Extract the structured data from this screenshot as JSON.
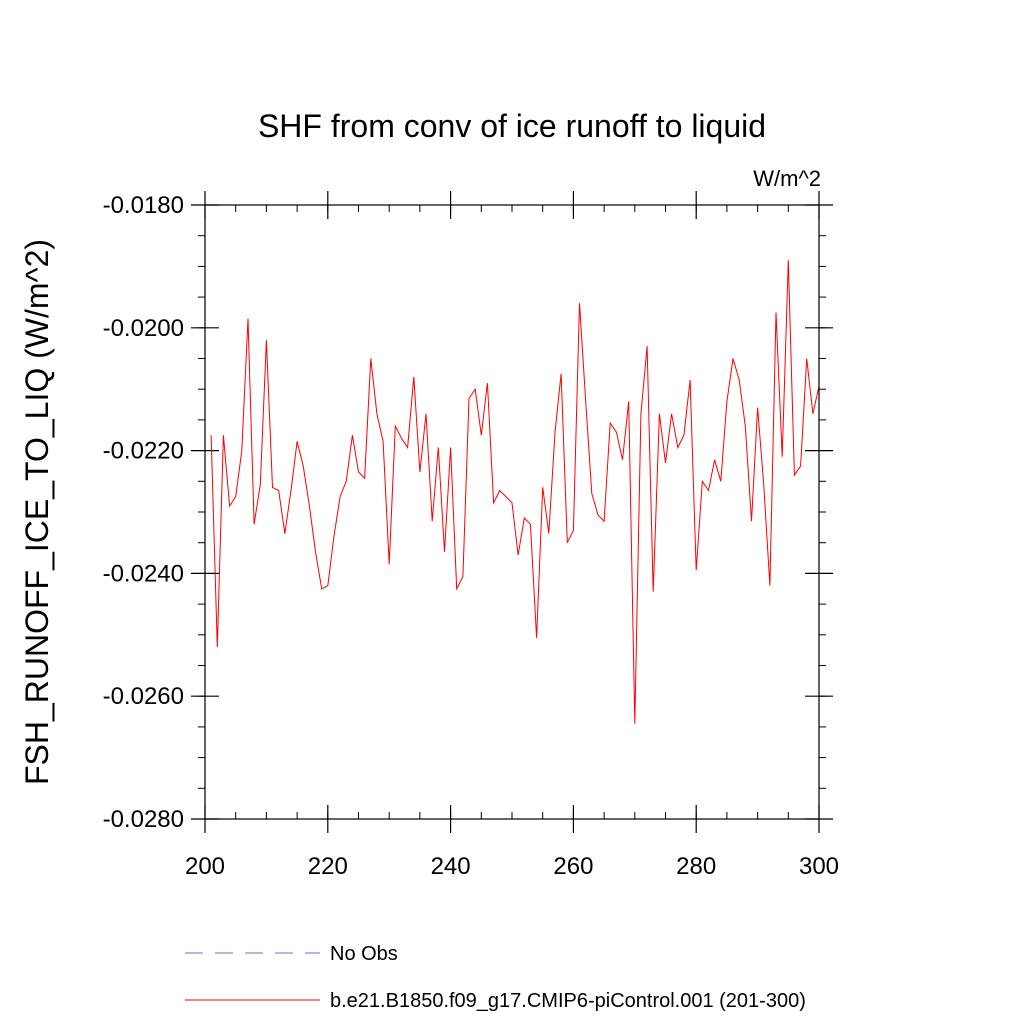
{
  "chart_data": {
    "type": "line",
    "title": "SHF from conv of ice runoff to liquid",
    "units": "W/m^2",
    "ylabel": "FSH_RUNOFF_ICE_TO_LIQ  (W/m^2)",
    "xlabel": "",
    "xlim": [
      200,
      300
    ],
    "ylim": [
      -0.028,
      -0.018
    ],
    "x_ticks": [
      200,
      220,
      240,
      260,
      280,
      300
    ],
    "x_tick_labels": [
      "200",
      "220",
      "240",
      "260",
      "280",
      "300"
    ],
    "y_ticks": [
      -0.018,
      -0.02,
      -0.022,
      -0.024,
      -0.026,
      -0.028
    ],
    "y_tick_labels": [
      "-0.0180",
      "-0.0200",
      "-0.0220",
      "-0.0240",
      "-0.0260",
      "-0.0280"
    ],
    "x_minor_step": 5,
    "y_minor_step": 0.0005,
    "grid": false,
    "legend_position": "bottom-left",
    "legend": [
      {
        "label": "No Obs",
        "color": "#7b68c8",
        "style": "dashed"
      },
      {
        "label": "b.e21.B1850.f09_g17.CMIP6-piControl.001 (201-300)",
        "color": "#ff0000",
        "style": "solid"
      }
    ],
    "series": [
      {
        "name": "b.e21.B1850.f09_g17.CMIP6-piControl.001 (201-300)",
        "color": "#ff0000",
        "x": [
          201,
          202,
          203,
          204,
          205,
          206,
          207,
          208,
          209,
          210,
          211,
          212,
          213,
          214,
          215,
          216,
          217,
          218,
          219,
          220,
          221,
          222,
          223,
          224,
          225,
          226,
          227,
          228,
          229,
          230,
          231,
          232,
          233,
          234,
          235,
          236,
          237,
          238,
          239,
          240,
          241,
          242,
          243,
          244,
          245,
          246,
          247,
          248,
          249,
          250,
          251,
          252,
          253,
          254,
          255,
          256,
          257,
          258,
          259,
          260,
          261,
          262,
          263,
          264,
          265,
          266,
          267,
          268,
          269,
          270,
          271,
          272,
          273,
          274,
          275,
          276,
          277,
          278,
          279,
          280,
          281,
          282,
          283,
          284,
          285,
          286,
          287,
          288,
          289,
          290,
          291,
          292,
          293,
          294,
          295,
          296,
          297,
          298,
          299,
          300
        ],
        "values": [
          -0.02175,
          -0.0252,
          -0.02175,
          -0.0229,
          -0.02275,
          -0.022,
          -0.01985,
          -0.0232,
          -0.02255,
          -0.0202,
          -0.0226,
          -0.02265,
          -0.02335,
          -0.02265,
          -0.02185,
          -0.02225,
          -0.0229,
          -0.02365,
          -0.02425,
          -0.0242,
          -0.0234,
          -0.02275,
          -0.0225,
          -0.02175,
          -0.02235,
          -0.02245,
          -0.0205,
          -0.0214,
          -0.02185,
          -0.02385,
          -0.0216,
          -0.0218,
          -0.02195,
          -0.0208,
          -0.02235,
          -0.0214,
          -0.02315,
          -0.02195,
          -0.02365,
          -0.02195,
          -0.02425,
          -0.02405,
          -0.02115,
          -0.021,
          -0.02175,
          -0.0209,
          -0.02285,
          -0.02265,
          -0.02275,
          -0.02285,
          -0.0237,
          -0.0231,
          -0.0232,
          -0.02505,
          -0.0226,
          -0.02335,
          -0.0217,
          -0.02075,
          -0.0235,
          -0.0233,
          -0.0196,
          -0.0212,
          -0.0227,
          -0.02305,
          -0.02315,
          -0.02155,
          -0.0217,
          -0.02215,
          -0.0212,
          -0.02645,
          -0.0214,
          -0.0203,
          -0.0243,
          -0.0214,
          -0.0222,
          -0.0214,
          -0.02195,
          -0.02175,
          -0.02085,
          -0.02395,
          -0.0225,
          -0.02265,
          -0.02215,
          -0.0225,
          -0.0212,
          -0.0205,
          -0.02085,
          -0.0216,
          -0.02315,
          -0.0213,
          -0.02255,
          -0.0242,
          -0.01975,
          -0.0221,
          -0.0189,
          -0.0224,
          -0.02225,
          -0.0205,
          -0.0214,
          -0.02095
        ]
      }
    ]
  }
}
